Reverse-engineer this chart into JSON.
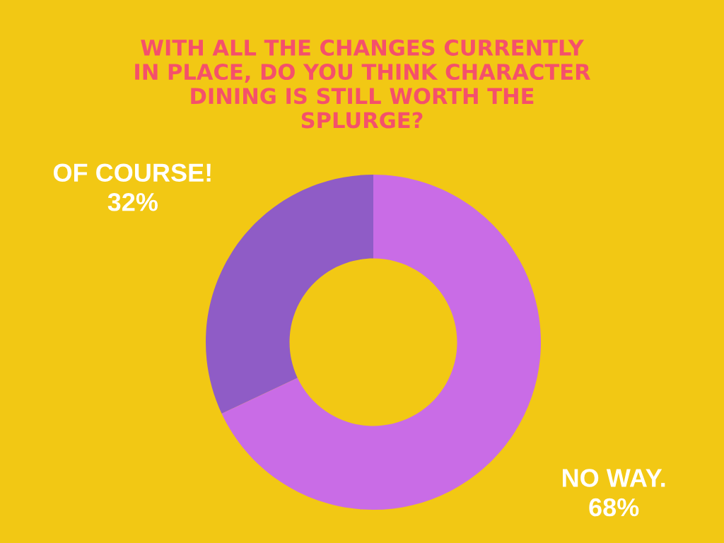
{
  "chart_data": {
    "type": "donut",
    "title": "WITH ALL THE CHANGES CURRENTLY\nIN PLACE, DO YOU THINK CHARACTER\nDINING IS STILL WORTH THE\nSPLURGE?",
    "categories": [
      "OF COURSE!",
      "NO WAY."
    ],
    "values": [
      32,
      68
    ],
    "colors": [
      "#8f5cc6",
      "#c96ce6"
    ],
    "value_labels": [
      "32%",
      "68%"
    ]
  }
}
